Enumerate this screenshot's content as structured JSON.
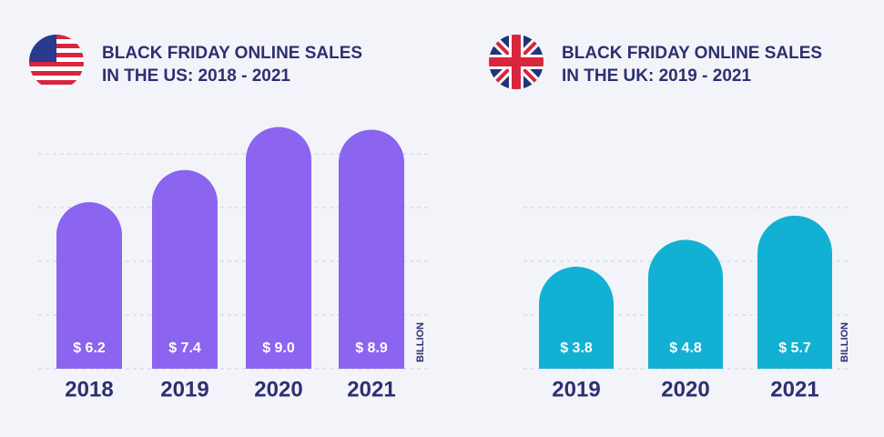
{
  "chart_data": [
    {
      "type": "bar",
      "title": [
        "BLACK FRIDAY ONLINE SALES",
        "IN THE US: 2018 - 2021"
      ],
      "unit": "BILLION",
      "categories": [
        "2018",
        "2019",
        "2020",
        "2021"
      ],
      "values": [
        6.2,
        7.4,
        9.0,
        8.9
      ],
      "value_labels": [
        "$ 6.2",
        "$ 7.4",
        "$ 9.0",
        "$ 8.9"
      ],
      "color": "#8b64f0",
      "ylim": [
        0,
        9
      ],
      "yticks": [
        0,
        2,
        4,
        6,
        8
      ],
      "grid": true
    },
    {
      "type": "bar",
      "title": [
        "BLACK FRIDAY ONLINE SALES",
        "IN THE UK: 2019 - 2021"
      ],
      "unit": "BILLION",
      "categories": [
        "2019",
        "2020",
        "2021"
      ],
      "values": [
        3.8,
        4.8,
        5.7
      ],
      "value_labels": [
        "$ 3.8",
        "$ 4.8",
        "$ 5.7"
      ],
      "color": "#12b1d4",
      "ylim": [
        0,
        9
      ],
      "yticks": [
        0,
        2,
        4,
        6
      ],
      "grid": true
    }
  ]
}
